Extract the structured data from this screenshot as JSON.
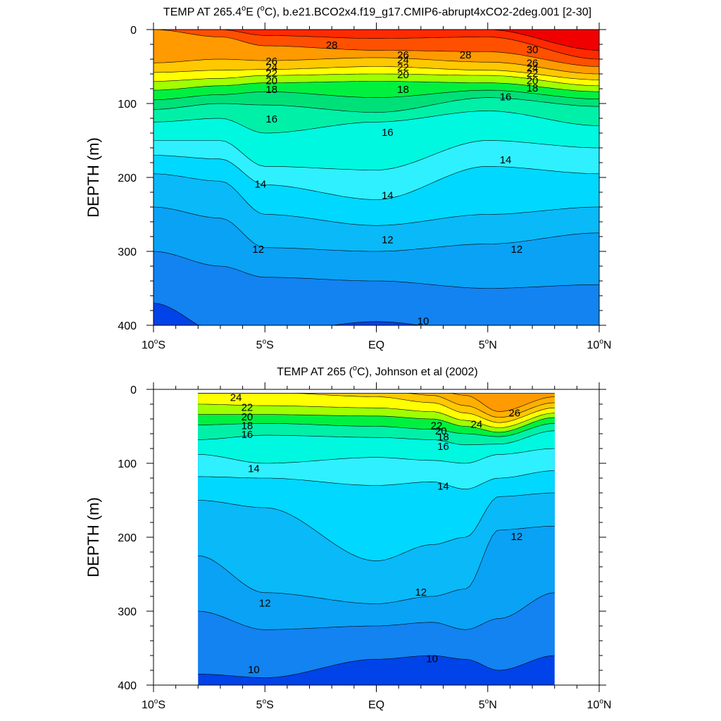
{
  "chart_data": [
    {
      "type": "heatmap",
      "title": "TEMP AT 265.4",
      "title_deg": "o",
      "title_rest": "E (",
      "title_unit_deg": "o",
      "title_tail": "C), b.e21.BCO2x4.f19_g17.CMIP6-abrupt4xCO2-2deg.001 [2-30]",
      "ylabel": "DEPTH (m)",
      "xlim": [
        -10,
        10
      ],
      "ylim": [
        400,
        0
      ],
      "x_ticks": [
        {
          "v": -10,
          "a": "10",
          "b": "S"
        },
        {
          "v": -5,
          "a": "5",
          "b": "S"
        },
        {
          "v": 0,
          "a": "EQ",
          "b": ""
        },
        {
          "v": 5,
          "a": "5",
          "b": "N"
        },
        {
          "v": 10,
          "a": "10",
          "b": "N"
        }
      ],
      "y_ticks": [
        "0",
        "100",
        "200",
        "300",
        "400"
      ],
      "data_x_range": [
        -10,
        10
      ],
      "contour_levels": [
        10,
        11,
        12,
        13,
        14,
        15,
        16,
        17,
        18,
        19,
        20,
        21,
        22,
        23,
        24,
        25,
        26,
        27,
        28,
        29,
        30
      ],
      "isotherm_depths": [
        {
          "level": 30,
          "x": [
            -10,
            -7,
            -5,
            0,
            5,
            10
          ],
          "depth": [
            0,
            0,
            0,
            0,
            0,
            28
          ]
        },
        {
          "level": 29,
          "x": [
            -10,
            -7,
            -5,
            0,
            5,
            10
          ],
          "depth": [
            0,
            0,
            8,
            12,
            10,
            40
          ]
        },
        {
          "level": 28,
          "x": [
            -10,
            -7,
            -5,
            0,
            5,
            10
          ],
          "depth": [
            0,
            10,
            22,
            28,
            30,
            50
          ]
        },
        {
          "level": 26,
          "x": [
            -10,
            -7,
            -5,
            0,
            5,
            10
          ],
          "depth": [
            45,
            40,
            42,
            38,
            44,
            60
          ]
        },
        {
          "level": 24,
          "x": [
            -10,
            -7,
            -5,
            0,
            5,
            10
          ],
          "depth": [
            58,
            55,
            54,
            50,
            55,
            68
          ]
        },
        {
          "level": 22,
          "x": [
            -10,
            -7,
            -5,
            0,
            5,
            10
          ],
          "depth": [
            70,
            66,
            62,
            60,
            62,
            76
          ]
        },
        {
          "level": 20,
          "x": [
            -10,
            -7,
            -5,
            0,
            5,
            10
          ],
          "depth": [
            82,
            76,
            72,
            70,
            72,
            84
          ]
        },
        {
          "level": 18,
          "x": [
            -10,
            -7,
            -5,
            0,
            5,
            10
          ],
          "depth": [
            95,
            88,
            84,
            92,
            82,
            94
          ]
        },
        {
          "level": 17,
          "x": [
            -10,
            -7,
            -5,
            0,
            5,
            10
          ],
          "depth": [
            108,
            100,
            102,
            112,
            92,
            104
          ]
        },
        {
          "level": 16,
          "x": [
            -10,
            -7,
            -5,
            0,
            5,
            10
          ],
          "depth": [
            125,
            120,
            140,
            125,
            110,
            130
          ]
        },
        {
          "level": 15,
          "x": [
            -10,
            -7,
            -5,
            0,
            5,
            10
          ],
          "depth": [
            150,
            150,
            185,
            190,
            150,
            160
          ]
        },
        {
          "level": 14,
          "x": [
            -10,
            -7,
            -5,
            0,
            5,
            10
          ],
          "depth": [
            170,
            175,
            210,
            230,
            185,
            195
          ]
        },
        {
          "level": 13,
          "x": [
            -10,
            -7,
            -5,
            0,
            5,
            10
          ],
          "depth": [
            195,
            205,
            250,
            265,
            250,
            240
          ]
        },
        {
          "level": 12,
          "x": [
            -10,
            -7,
            -5,
            0,
            5,
            10
          ],
          "depth": [
            240,
            255,
            295,
            300,
            290,
            275
          ]
        },
        {
          "level": 11,
          "x": [
            -10,
            -7,
            -5,
            0,
            5,
            10
          ],
          "depth": [
            300,
            320,
            335,
            340,
            350,
            345
          ]
        },
        {
          "level": 10,
          "x": [
            -10,
            -7,
            -5,
            0,
            5,
            10
          ],
          "depth": [
            370,
            410,
            410,
            395,
            410,
            410
          ]
        }
      ],
      "contour_labels": [
        {
          "text": "28",
          "x": -2,
          "y": 22
        },
        {
          "text": "30",
          "x": 7,
          "y": 28
        },
        {
          "text": "28",
          "x": 4,
          "y": 35
        },
        {
          "text": "26",
          "x": -4.7,
          "y": 44
        },
        {
          "text": "24",
          "x": -4.7,
          "y": 52
        },
        {
          "text": "22",
          "x": -4.7,
          "y": 60
        },
        {
          "text": "20",
          "x": -4.7,
          "y": 70
        },
        {
          "text": "18",
          "x": -4.7,
          "y": 82
        },
        {
          "text": "26",
          "x": 1.2,
          "y": 35
        },
        {
          "text": "24",
          "x": 1.2,
          "y": 42
        },
        {
          "text": "22",
          "x": 1.2,
          "y": 52
        },
        {
          "text": "20",
          "x": 1.2,
          "y": 62
        },
        {
          "text": "18",
          "x": 1.2,
          "y": 82
        },
        {
          "text": "26",
          "x": 7,
          "y": 46
        },
        {
          "text": "24",
          "x": 7,
          "y": 53
        },
        {
          "text": "22",
          "x": 7,
          "y": 60
        },
        {
          "text": "20",
          "x": 7,
          "y": 70
        },
        {
          "text": "18",
          "x": 7,
          "y": 80
        },
        {
          "text": "16",
          "x": 5.8,
          "y": 92
        },
        {
          "text": "16",
          "x": -4.7,
          "y": 122
        },
        {
          "text": "16",
          "x": 0.5,
          "y": 140
        },
        {
          "text": "14",
          "x": -5.2,
          "y": 210
        },
        {
          "text": "14",
          "x": 0.5,
          "y": 225
        },
        {
          "text": "14",
          "x": 5.8,
          "y": 177
        },
        {
          "text": "12",
          "x": -5.3,
          "y": 298
        },
        {
          "text": "12",
          "x": 0.5,
          "y": 285
        },
        {
          "text": "12",
          "x": 6.3,
          "y": 298
        },
        {
          "text": "10",
          "x": 2.1,
          "y": 395
        }
      ]
    },
    {
      "type": "heatmap",
      "title": "TEMP AT 265 (",
      "title_deg": "o",
      "title_tail": "C), Johnson et al (2002)",
      "ylabel": "DEPTH (m)",
      "xlim": [
        -10,
        10
      ],
      "ylim": [
        400,
        0
      ],
      "x_ticks": [
        {
          "v": -10,
          "a": "10",
          "b": "S"
        },
        {
          "v": -5,
          "a": "5",
          "b": "S"
        },
        {
          "v": 0,
          "a": "EQ",
          "b": ""
        },
        {
          "v": 5,
          "a": "5",
          "b": "N"
        },
        {
          "v": 10,
          "a": "10",
          "b": "N"
        }
      ],
      "y_ticks": [
        "0",
        "100",
        "200",
        "300",
        "400"
      ],
      "data_x_range": [
        -8,
        8
      ],
      "contour_levels": [
        10,
        11,
        12,
        13,
        14,
        15,
        16,
        17,
        18,
        19,
        20,
        21,
        22,
        23,
        24,
        25,
        26,
        27,
        28
      ],
      "isotherm_depths": [
        {
          "level": 28,
          "x": [
            -8,
            -5,
            0,
            2.5,
            4,
            5.5,
            8
          ],
          "depth": [
            0,
            0,
            0,
            0,
            0,
            0,
            4
          ]
        },
        {
          "level": 26,
          "x": [
            -8,
            -5,
            0,
            2.5,
            4,
            5.5,
            8
          ],
          "depth": [
            0,
            0,
            0,
            0,
            8,
            30,
            10
          ]
        },
        {
          "level": 25,
          "x": [
            -8,
            -5,
            0,
            2.5,
            4,
            5.5,
            8
          ],
          "depth": [
            0,
            0,
            0,
            8,
            22,
            38,
            18
          ]
        },
        {
          "level": 24,
          "x": [
            -8,
            -5,
            0,
            2.5,
            4,
            5.5,
            8
          ],
          "depth": [
            2,
            4,
            10,
            18,
            32,
            45,
            25
          ]
        },
        {
          "level": 22,
          "x": [
            -8,
            -5,
            0,
            2.5,
            4,
            5.5,
            8
          ],
          "depth": [
            20,
            22,
            25,
            30,
            42,
            52,
            32
          ]
        },
        {
          "level": 20,
          "x": [
            -8,
            -5,
            0,
            2.5,
            4,
            5.5,
            8
          ],
          "depth": [
            34,
            34,
            36,
            40,
            50,
            58,
            38
          ]
        },
        {
          "level": 18,
          "x": [
            -8,
            -5,
            0,
            2.5,
            4,
            5.5,
            8
          ],
          "depth": [
            48,
            46,
            50,
            54,
            60,
            64,
            46
          ]
        },
        {
          "level": 16,
          "x": [
            -8,
            -5,
            0,
            2.5,
            4,
            5.5,
            8
          ],
          "depth": [
            68,
            62,
            65,
            68,
            75,
            74,
            56
          ]
        },
        {
          "level": 15,
          "x": [
            -8,
            -5,
            0,
            2.5,
            4,
            5.5,
            8
          ],
          "depth": [
            88,
            100,
            92,
            96,
            100,
            88,
            80
          ]
        },
        {
          "level": 14,
          "x": [
            -8,
            -5,
            0,
            2.5,
            4,
            5.5,
            8
          ],
          "depth": [
            118,
            120,
            130,
            125,
            135,
            120,
            110
          ]
        },
        {
          "level": 13,
          "x": [
            -8,
            -5,
            0,
            2.5,
            4,
            5.5,
            8
          ],
          "depth": [
            150,
            160,
            232,
            210,
            200,
            145,
            140
          ]
        },
        {
          "level": 12,
          "x": [
            -8,
            -5,
            0,
            2.5,
            4,
            5.5,
            8
          ],
          "depth": [
            225,
            275,
            290,
            280,
            270,
            190,
            185
          ]
        },
        {
          "level": 11,
          "x": [
            -8,
            -5,
            0,
            2.5,
            4,
            5.5,
            8
          ],
          "depth": [
            300,
            325,
            320,
            315,
            325,
            310,
            275
          ]
        },
        {
          "level": 10,
          "x": [
            -8,
            -5,
            0,
            2.5,
            4,
            5.5,
            8
          ],
          "depth": [
            385,
            390,
            365,
            360,
            365,
            380,
            360
          ]
        }
      ],
      "contour_labels": [
        {
          "text": "24",
          "x": -6.3,
          "y": 12
        },
        {
          "text": "22",
          "x": -5.8,
          "y": 25
        },
        {
          "text": "20",
          "x": -5.8,
          "y": 38
        },
        {
          "text": "18",
          "x": -5.8,
          "y": 50
        },
        {
          "text": "16",
          "x": -5.8,
          "y": 62
        },
        {
          "text": "22",
          "x": 2.7,
          "y": 50
        },
        {
          "text": "20",
          "x": 2.9,
          "y": 57
        },
        {
          "text": "18",
          "x": 3.0,
          "y": 65
        },
        {
          "text": "16",
          "x": 3.0,
          "y": 78
        },
        {
          "text": "24",
          "x": 4.5,
          "y": 48
        },
        {
          "text": "26",
          "x": 6.2,
          "y": 33
        },
        {
          "text": "14",
          "x": -5.5,
          "y": 108
        },
        {
          "text": "14",
          "x": 3.0,
          "y": 132
        },
        {
          "text": "12",
          "x": 6.3,
          "y": 200
        },
        {
          "text": "12",
          "x": -5.0,
          "y": 290
        },
        {
          "text": "12",
          "x": 2.0,
          "y": 275
        },
        {
          "text": "10",
          "x": -5.5,
          "y": 380
        },
        {
          "text": "10",
          "x": 2.5,
          "y": 365
        }
      ]
    }
  ],
  "colors": {
    "palette": [
      "#0043e8",
      "#0a5ff2",
      "#1283f0",
      "#0aa2f5",
      "#0ab9f8",
      "#00d8ff",
      "#2ef0ff",
      "#00f8e0",
      "#00f0a8",
      "#00e078",
      "#00f040",
      "#5aff20",
      "#a0ff00",
      "#d8ff00",
      "#ffff00",
      "#ffe000",
      "#ffc800",
      "#ffb000",
      "#ff9a00",
      "#ff7a00",
      "#ff5000",
      "#ff2a00",
      "#f00000",
      "#c80000"
    ]
  }
}
